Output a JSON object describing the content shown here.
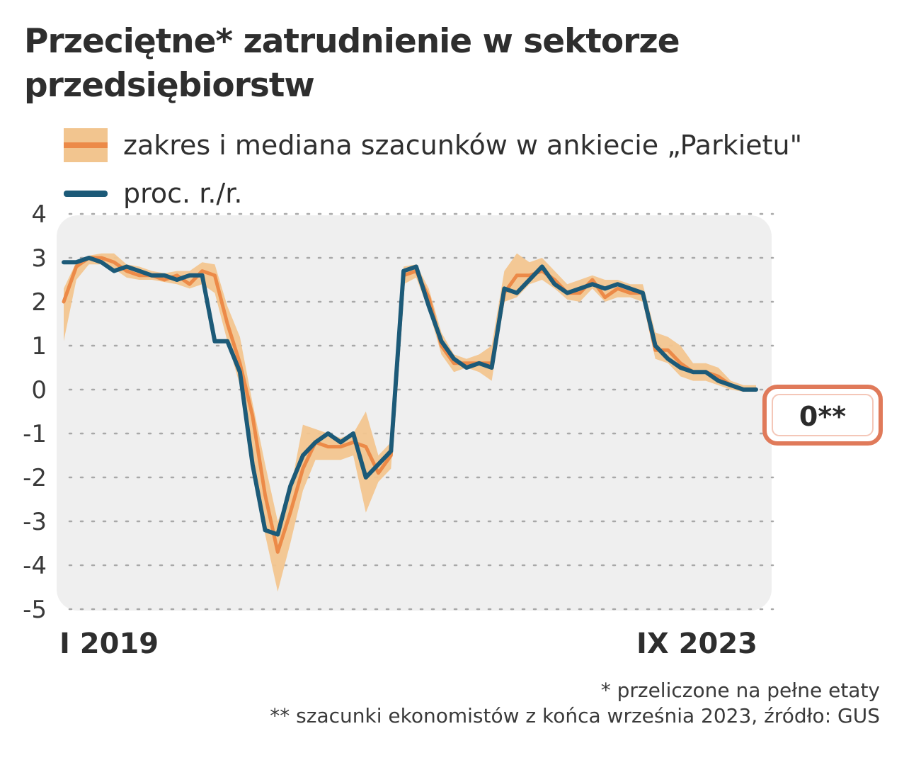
{
  "title": "Przeciętne* zatrudnienie w sektorze przedsiębiorstw",
  "legend": {
    "range_label": "zakres i mediana szacunków w ankiecie „Parkietu\"",
    "line_label": "proc. r./r.",
    "range_fill_color": "#f2c58f",
    "median_color": "#ec8a48",
    "line_color": "#1c5a78"
  },
  "footnotes": {
    "note1": "* przeliczone na pełne etaty",
    "note2": "** szacunki ekonomistów z końca września 2023, źródło: GUS"
  },
  "chart_data": {
    "type": "line",
    "title": "Przeciętne* zatrudnienie w sektorze przedsiębiorstw",
    "ylim": [
      -5,
      4
    ],
    "y_ticks": [
      "4",
      "3",
      "2",
      "1",
      "0",
      "-1",
      "-2",
      "-3",
      "-4",
      "-5"
    ],
    "x_tick_labels": [
      "I 2019",
      "IX 2023"
    ],
    "grid": true,
    "callout": "0**",
    "series": [
      {
        "name": "proc. r./r.",
        "values": [
          2.9,
          2.9,
          3.0,
          2.9,
          2.7,
          2.8,
          2.7,
          2.6,
          2.6,
          2.5,
          2.6,
          2.6,
          1.1,
          1.1,
          0.4,
          -1.7,
          -3.2,
          -3.3,
          -2.2,
          -1.5,
          -1.2,
          -1.0,
          -1.2,
          -1.0,
          -2.0,
          -1.7,
          -1.4,
          2.7,
          2.8,
          1.9,
          1.1,
          0.7,
          0.5,
          0.6,
          0.5,
          2.3,
          2.2,
          2.5,
          2.8,
          2.4,
          2.2,
          2.3,
          2.4,
          2.3,
          2.4,
          2.3,
          2.2,
          1.0,
          0.7,
          0.5,
          0.4,
          0.4,
          0.2,
          0.1,
          0.0,
          0.0
        ]
      },
      {
        "name": "mediana",
        "values": [
          2.0,
          2.8,
          3.0,
          3.0,
          2.9,
          2.7,
          2.6,
          2.6,
          2.5,
          2.6,
          2.4,
          2.7,
          2.6,
          1.5,
          0.6,
          -0.6,
          -2.4,
          -3.7,
          -2.8,
          -1.8,
          -1.2,
          -1.3,
          -1.3,
          -1.2,
          -1.3,
          -1.9,
          -1.5,
          2.6,
          2.7,
          2.1,
          1.0,
          0.6,
          0.6,
          0.6,
          0.6,
          2.2,
          2.6,
          2.6,
          2.7,
          2.5,
          2.2,
          2.2,
          2.5,
          2.1,
          2.3,
          2.2,
          2.2,
          0.9,
          0.9,
          0.6,
          0.4,
          0.4,
          0.3,
          0.1,
          0.0,
          0.0
        ]
      },
      {
        "name": "max",
        "values": [
          2.3,
          2.9,
          3.05,
          3.1,
          3.1,
          2.85,
          2.8,
          2.7,
          2.65,
          2.7,
          2.7,
          2.9,
          2.85,
          1.9,
          1.2,
          -0.3,
          -1.7,
          -3.0,
          -2.3,
          -0.8,
          -0.9,
          -1.0,
          -1.1,
          -1.0,
          -0.5,
          -1.5,
          -1.2,
          2.8,
          2.85,
          2.3,
          1.3,
          0.8,
          0.7,
          0.8,
          1.0,
          2.7,
          3.1,
          2.9,
          3.0,
          2.7,
          2.4,
          2.5,
          2.6,
          2.5,
          2.5,
          2.4,
          2.4,
          1.3,
          1.2,
          1.0,
          0.6,
          0.6,
          0.5,
          0.2,
          0.1,
          0.1
        ]
      },
      {
        "name": "min",
        "values": [
          1.1,
          2.5,
          2.85,
          2.85,
          2.75,
          2.55,
          2.5,
          2.5,
          2.45,
          2.4,
          2.3,
          2.4,
          2.2,
          1.1,
          0.1,
          -1.6,
          -3.3,
          -4.6,
          -3.5,
          -2.3,
          -1.6,
          -1.6,
          -1.6,
          -1.5,
          -2.8,
          -2.1,
          -1.8,
          2.4,
          2.55,
          1.8,
          0.8,
          0.4,
          0.5,
          0.4,
          0.2,
          2.0,
          2.1,
          2.4,
          2.5,
          2.3,
          2.05,
          2.0,
          2.3,
          2.0,
          2.1,
          2.1,
          2.0,
          0.7,
          0.6,
          0.3,
          0.2,
          0.2,
          0.1,
          0.0,
          -0.05,
          -0.05
        ]
      }
    ]
  }
}
